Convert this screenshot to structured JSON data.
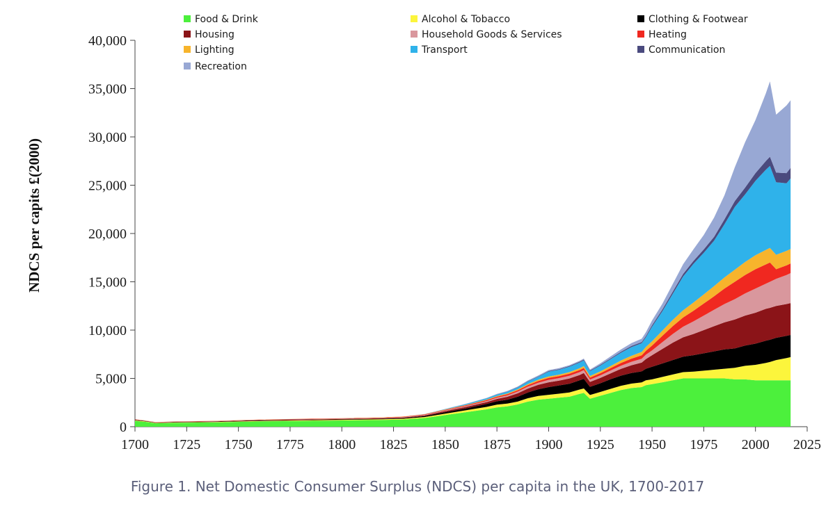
{
  "caption": "Figure 1. Net Domestic Consumer Surplus (NDCS) per capita in the UK, 1700-2017",
  "chart_data": {
    "type": "area",
    "stacked": true,
    "title": "",
    "xlabel": "",
    "ylabel": "NDCS per capits £(2000)",
    "xlim": [
      1700,
      2025
    ],
    "ylim": [
      0,
      40000
    ],
    "xticks": [
      1700,
      1725,
      1750,
      1775,
      1800,
      1825,
      1850,
      1875,
      1900,
      1925,
      1950,
      1975,
      2000,
      2025
    ],
    "xtick_labels": [
      "1700",
      "1725",
      "1750",
      "1775",
      "1800",
      "1825",
      "1850",
      "1875",
      "1900",
      "1925",
      "1950",
      "1975",
      "2000",
      "2025"
    ],
    "yticks": [
      0,
      5000,
      10000,
      15000,
      20000,
      25000,
      30000,
      35000,
      40000
    ],
    "ytick_labels": [
      "0",
      "5,000",
      "10,000",
      "15,000",
      "20,000",
      "25,000",
      "30,000",
      "35,000",
      "40,000"
    ],
    "legend_position": "top",
    "x": [
      1700,
      1705,
      1710,
      1720,
      1740,
      1760,
      1780,
      1800,
      1820,
      1830,
      1840,
      1850,
      1860,
      1870,
      1875,
      1880,
      1885,
      1890,
      1895,
      1900,
      1905,
      1910,
      1915,
      1917,
      1920,
      1925,
      1930,
      1935,
      1940,
      1945,
      1947,
      1950,
      1955,
      1960,
      1965,
      1970,
      1975,
      1980,
      1985,
      1990,
      1995,
      2000,
      2005,
      2007,
      2010,
      2015,
      2017
    ],
    "series": [
      {
        "name": "Food & Drink",
        "color": "#4cf03c",
        "values": [
          600,
          500,
          350,
          400,
          450,
          550,
          600,
          650,
          700,
          750,
          900,
          1200,
          1500,
          1800,
          2000,
          2100,
          2300,
          2600,
          2800,
          2900,
          3000,
          3100,
          3400,
          3500,
          2900,
          3200,
          3500,
          3800,
          4000,
          4100,
          4300,
          4400,
          4600,
          4800,
          5000,
          5000,
          5000,
          5000,
          5000,
          4900,
          4900,
          4800,
          4800,
          4800,
          4800,
          4800,
          4800
        ]
      },
      {
        "name": "Alcohol & Tobacco",
        "color": "#fcf53c",
        "values": [
          50,
          45,
          35,
          40,
          45,
          50,
          55,
          60,
          70,
          80,
          100,
          150,
          200,
          250,
          280,
          290,
          300,
          350,
          380,
          400,
          420,
          440,
          450,
          460,
          380,
          400,
          420,
          440,
          460,
          480,
          500,
          500,
          550,
          600,
          650,
          700,
          800,
          900,
          1000,
          1200,
          1400,
          1600,
          1800,
          1900,
          2100,
          2300,
          2400
        ]
      },
      {
        "name": "Clothing & Footwear",
        "color": "#000000",
        "values": [
          40,
          35,
          30,
          35,
          40,
          45,
          50,
          55,
          60,
          70,
          90,
          150,
          200,
          300,
          350,
          400,
          500,
          600,
          700,
          800,
          850,
          900,
          950,
          1000,
          850,
          900,
          1000,
          1050,
          1100,
          1150,
          1200,
          1300,
          1400,
          1500,
          1600,
          1700,
          1800,
          1900,
          2000,
          2000,
          2100,
          2200,
          2300,
          2300,
          2300,
          2300,
          2300
        ]
      },
      {
        "name": "Housing",
        "color": "#8b1418",
        "values": [
          30,
          25,
          20,
          25,
          30,
          35,
          40,
          45,
          50,
          60,
          80,
          120,
          150,
          200,
          250,
          300,
          350,
          400,
          450,
          500,
          500,
          550,
          550,
          600,
          500,
          550,
          600,
          700,
          800,
          900,
          1000,
          1200,
          1500,
          1800,
          2000,
          2200,
          2400,
          2600,
          2800,
          3000,
          3100,
          3200,
          3300,
          3300,
          3300,
          3300,
          3300
        ]
      },
      {
        "name": "Household Goods & Services",
        "color": "#d9979d",
        "values": [
          20,
          18,
          15,
          18,
          20,
          25,
          30,
          30,
          35,
          40,
          50,
          60,
          80,
          100,
          120,
          150,
          180,
          200,
          220,
          250,
          260,
          280,
          300,
          300,
          250,
          270,
          300,
          330,
          360,
          400,
          450,
          500,
          700,
          900,
          1100,
          1300,
          1500,
          1700,
          1900,
          2100,
          2300,
          2500,
          2600,
          2700,
          2800,
          3000,
          3100
        ]
      },
      {
        "name": "Heating",
        "color": "#f02820",
        "values": [
          20,
          18,
          15,
          18,
          20,
          25,
          30,
          30,
          35,
          40,
          50,
          60,
          80,
          100,
          110,
          120,
          140,
          160,
          180,
          200,
          200,
          210,
          220,
          220,
          200,
          220,
          250,
          280,
          320,
          360,
          400,
          500,
          650,
          800,
          950,
          1100,
          1250,
          1400,
          1600,
          1800,
          1900,
          2000,
          2000,
          2000,
          1000,
          1000,
          1000
        ]
      },
      {
        "name": "Lighting",
        "color": "#f7b42c",
        "values": [
          10,
          9,
          8,
          9,
          10,
          12,
          15,
          15,
          18,
          20,
          25,
          35,
          45,
          55,
          65,
          75,
          90,
          110,
          130,
          150,
          160,
          170,
          180,
          190,
          170,
          190,
          220,
          260,
          300,
          350,
          400,
          450,
          550,
          650,
          750,
          850,
          950,
          1050,
          1150,
          1250,
          1350,
          1450,
          1500,
          1500,
          1500,
          1500,
          1500
        ]
      },
      {
        "name": "Transport",
        "color": "#2fb2ea",
        "values": [
          0,
          0,
          0,
          0,
          0,
          0,
          0,
          0,
          0,
          0,
          10,
          40,
          80,
          120,
          150,
          180,
          200,
          250,
          300,
          500,
          500,
          550,
          600,
          600,
          500,
          600,
          700,
          800,
          900,
          900,
          1000,
          1500,
          2000,
          2700,
          3500,
          4000,
          4300,
          4700,
          5500,
          6500,
          7000,
          7700,
          8300,
          8500,
          7500,
          7000,
          7300
        ]
      },
      {
        "name": "Communication",
        "color": "#4a4a7e",
        "values": [
          0,
          0,
          0,
          0,
          0,
          0,
          0,
          0,
          0,
          0,
          0,
          5,
          10,
          15,
          20,
          25,
          30,
          40,
          50,
          60,
          65,
          70,
          75,
          80,
          70,
          80,
          90,
          100,
          110,
          120,
          130,
          150,
          180,
          220,
          260,
          300,
          350,
          400,
          500,
          600,
          700,
          800,
          900,
          950,
          1000,
          1050,
          1100
        ]
      },
      {
        "name": "Recreation",
        "color": "#98a8d4",
        "values": [
          0,
          0,
          0,
          0,
          0,
          0,
          0,
          0,
          0,
          0,
          10,
          20,
          30,
          40,
          50,
          60,
          70,
          80,
          90,
          100,
          100,
          100,
          100,
          100,
          100,
          150,
          200,
          250,
          300,
          350,
          400,
          500,
          600,
          800,
          1000,
          1200,
          1500,
          2000,
          2500,
          3500,
          4700,
          5500,
          7000,
          7800,
          6000,
          7000,
          7000
        ]
      }
    ]
  }
}
